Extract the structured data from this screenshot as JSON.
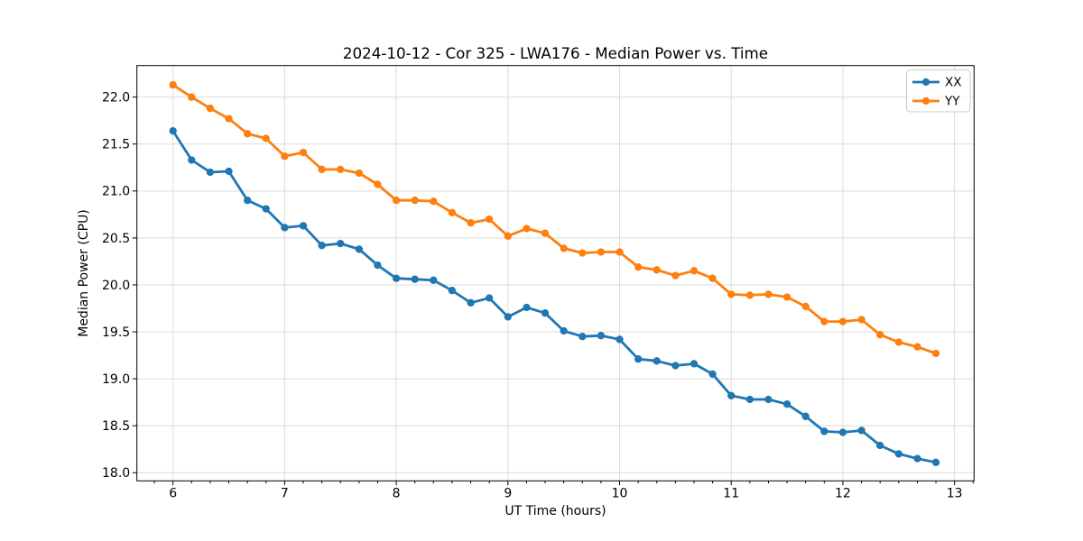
{
  "chart_data": {
    "type": "line",
    "title": "2024-10-12 - Cor 325 - LWA176 - Median Power vs. Time",
    "xlabel": "UT Time (hours)",
    "ylabel": "Median Power (CPU)",
    "x": [
      6.0,
      6.167,
      6.333,
      6.5,
      6.667,
      6.833,
      7.0,
      7.167,
      7.333,
      7.5,
      7.667,
      7.833,
      8.0,
      8.167,
      8.333,
      8.5,
      8.667,
      8.833,
      9.0,
      9.167,
      9.333,
      9.5,
      9.667,
      9.833,
      10.0,
      10.167,
      10.333,
      10.5,
      10.667,
      10.833,
      11.0,
      11.167,
      11.333,
      11.5,
      11.667,
      11.833,
      12.0,
      12.167,
      12.333,
      12.5,
      12.667,
      12.833
    ],
    "series": [
      {
        "name": "XX",
        "color": "#1f77b4",
        "values": [
          21.64,
          21.33,
          21.2,
          21.21,
          20.9,
          20.81,
          20.61,
          20.63,
          20.42,
          20.44,
          20.38,
          20.21,
          20.07,
          20.06,
          20.05,
          19.94,
          19.81,
          19.86,
          19.66,
          19.76,
          19.7,
          19.51,
          19.45,
          19.46,
          19.42,
          19.21,
          19.19,
          19.14,
          19.16,
          19.05,
          18.82,
          18.78,
          18.78,
          18.73,
          18.6,
          18.44,
          18.43,
          18.45,
          18.29,
          18.2,
          18.15,
          18.11
        ]
      },
      {
        "name": "YY",
        "color": "#ff7f0e",
        "values": [
          22.13,
          22.0,
          21.88,
          21.77,
          21.61,
          21.56,
          21.37,
          21.41,
          21.23,
          21.23,
          21.19,
          21.07,
          20.9,
          20.9,
          20.89,
          20.77,
          20.66,
          20.7,
          20.52,
          20.6,
          20.55,
          20.39,
          20.34,
          20.35,
          20.35,
          20.19,
          20.16,
          20.1,
          20.15,
          20.07,
          19.9,
          19.89,
          19.9,
          19.87,
          19.77,
          19.61,
          19.61,
          19.63,
          19.47,
          19.39,
          19.34,
          19.27
        ]
      }
    ],
    "xlim": [
      5.677,
      13.175
    ],
    "ylim": [
      17.913,
      22.336
    ],
    "xticks": [
      6,
      7,
      8,
      9,
      10,
      11,
      12,
      13
    ],
    "xtick_labels": [
      "6",
      "7",
      "8",
      "9",
      "10",
      "11",
      "12",
      "13"
    ],
    "yticks": [
      18.0,
      18.5,
      19.0,
      19.5,
      20.0,
      20.5,
      21.0,
      21.5,
      22.0
    ],
    "ytick_labels": [
      "18.0",
      "18.5",
      "19.0",
      "19.5",
      "20.0",
      "20.5",
      "21.0",
      "21.5",
      "22.0"
    ],
    "minor_xtick_step": 0.166667,
    "grid": true,
    "grid_color": "#dcdcdc",
    "spine_color": "#000000",
    "background": "#ffffff",
    "marker": "o",
    "legend": {
      "position": "upper right",
      "labels": [
        "XX",
        "YY"
      ]
    }
  }
}
